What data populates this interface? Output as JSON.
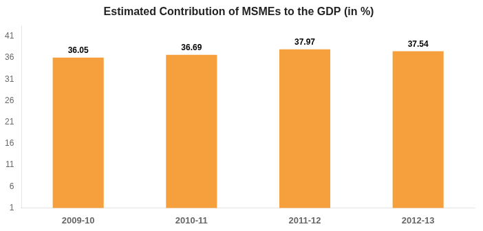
{
  "chart_data": {
    "type": "bar",
    "title": "Estimated Contribution of MSMEs to the GDP (in %)",
    "categories": [
      "2009-10",
      "2010-11",
      "2011-12",
      "2012-13"
    ],
    "values": [
      36.05,
      36.69,
      37.97,
      37.54
    ],
    "color": "#F5A03C",
    "ylim": [
      1,
      43.5
    ],
    "yticks": [
      1,
      6,
      11,
      16,
      21,
      26,
      31,
      36,
      41
    ],
    "grid": false,
    "data_labels": true
  }
}
